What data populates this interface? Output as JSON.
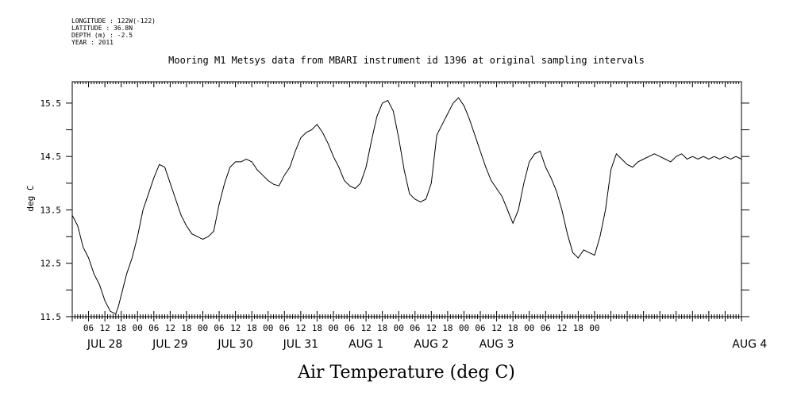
{
  "meta": {
    "longitude": "LONGITUDE : 122W(-122)",
    "latitude": "LATITUDE : 36.8N",
    "depth": "DEPTH (m) : -2.5",
    "year": "YEAR : 2011"
  },
  "chart_data": {
    "type": "line",
    "title": "Mooring M1 Metsys data from MBARI instrument id 1396 at original sampling intervals",
    "xlabel": "Air Temperature (deg C)",
    "ylabel": "deg C",
    "ylim": [
      11.5,
      15.9
    ],
    "xlim_hours": [
      0,
      246
    ],
    "y_ticks": [
      11.5,
      12.5,
      13.5,
      14.5,
      15.5
    ],
    "y_tick_labels": [
      "11.5",
      "12.5",
      "13.5",
      "14.5",
      "15.5"
    ],
    "x_hour_labels": [
      "06",
      "12",
      "18",
      "00",
      "06",
      "12",
      "18",
      "00",
      "06",
      "12",
      "18",
      "00",
      "06",
      "12",
      "18",
      "00",
      "06",
      "12",
      "18",
      "00",
      "06",
      "12",
      "18",
      "00",
      "06",
      "12",
      "18",
      "00",
      "06",
      "12",
      "18",
      "00"
    ],
    "x_day_labels": [
      "JUL 28",
      "JUL 29",
      "JUL 30",
      "JUL 31",
      "AUG  1",
      "AUG  2",
      "AUG  3",
      "AUG  4"
    ],
    "grid": false,
    "series": [
      {
        "x": [
          0,
          2,
          4,
          6,
          8,
          10,
          12,
          14,
          16,
          17,
          18,
          20,
          22,
          24,
          26,
          28,
          30,
          32,
          34,
          36,
          38,
          40,
          42,
          44,
          46,
          48,
          50,
          52,
          54,
          56,
          58,
          60,
          62,
          64,
          66,
          68,
          70,
          72,
          74,
          76,
          78,
          80,
          82,
          84,
          86,
          88,
          90,
          92,
          94,
          96,
          98,
          100,
          102,
          104,
          106,
          108,
          110,
          112,
          114,
          116,
          118,
          120,
          122,
          124,
          126,
          128,
          130,
          132,
          134,
          136,
          138,
          140,
          142,
          144,
          146,
          148,
          150,
          152,
          154,
          156,
          158,
          160,
          162,
          164,
          166,
          168,
          170,
          172,
          174,
          176,
          178,
          180,
          182,
          184,
          186,
          188,
          190,
          192,
          194,
          196,
          198,
          200,
          202,
          204,
          206,
          208,
          210,
          212,
          214,
          216,
          218,
          220,
          222,
          224,
          226,
          228,
          230,
          232,
          234,
          236,
          238,
          240,
          242,
          244,
          246
        ],
        "y": [
          13.4,
          13.2,
          12.8,
          12.6,
          12.3,
          12.1,
          11.8,
          11.6,
          11.55,
          11.7,
          11.9,
          12.3,
          12.6,
          13.0,
          13.5,
          13.8,
          14.1,
          14.35,
          14.3,
          14.0,
          13.7,
          13.4,
          13.2,
          13.05,
          13.0,
          12.95,
          13.0,
          13.1,
          13.6,
          14.0,
          14.3,
          14.4,
          14.4,
          14.45,
          14.4,
          14.25,
          14.15,
          14.05,
          13.98,
          13.95,
          14.15,
          14.3,
          14.6,
          14.85,
          14.95,
          15.0,
          15.1,
          14.95,
          14.75,
          14.5,
          14.3,
          14.05,
          13.95,
          13.9,
          14.0,
          14.3,
          14.8,
          15.25,
          15.5,
          15.55,
          15.35,
          14.85,
          14.25,
          13.8,
          13.7,
          13.65,
          13.7,
          14.0,
          14.9,
          15.1,
          15.3,
          15.5,
          15.6,
          15.45,
          15.2,
          14.9,
          14.6,
          14.3,
          14.05,
          13.9,
          13.75,
          13.5,
          13.25,
          13.5,
          14.0,
          14.4,
          14.55,
          14.6,
          14.3,
          14.1,
          13.85,
          13.5,
          13.05,
          12.7,
          12.6,
          12.75,
          12.7,
          12.65,
          13.0,
          13.5,
          14.25,
          14.55,
          14.45,
          14.35,
          14.3,
          14.4,
          14.45,
          14.5,
          14.55,
          14.5,
          14.45,
          14.4,
          14.5,
          14.55,
          14.45,
          14.5,
          14.45,
          14.5,
          14.45,
          14.5,
          14.45,
          14.5,
          14.45,
          14.5,
          14.45
        ]
      }
    ]
  }
}
